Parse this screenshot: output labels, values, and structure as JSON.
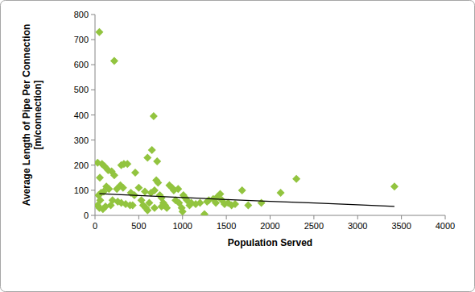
{
  "chart_data": {
    "type": "scatter",
    "x_label": "Population Served",
    "y_label": "Average Length of Pipe Per Connection [m/connection]",
    "xlim": [
      0,
      4000
    ],
    "xticks": [
      0,
      500,
      1000,
      1500,
      2000,
      2500,
      3000,
      3500,
      4000
    ],
    "ylim": [
      0,
      800
    ],
    "yticks": [
      0,
      100,
      200,
      300,
      400,
      500,
      600,
      700,
      800
    ],
    "grid": false,
    "series": [
      {
        "type": "scatter",
        "marker": "diamond",
        "color": "#92c43f",
        "x": [
          50,
          220,
          670,
          650,
          600,
          710,
          30,
          80,
          110,
          330,
          370,
          300,
          150,
          190,
          220,
          460,
          55,
          290,
          320,
          250,
          130,
          160,
          100,
          70,
          40,
          60,
          30,
          50,
          90,
          120,
          200,
          260,
          300,
          350,
          400,
          410,
          450,
          500,
          530,
          550,
          580,
          600,
          620,
          640,
          680,
          700,
          720,
          740,
          760,
          780,
          800,
          820,
          850,
          880,
          900,
          920,
          950,
          960,
          990,
          1000,
          1010,
          1030,
          1050,
          1080,
          1100,
          1150,
          1200,
          1250,
          1280,
          1300,
          1350,
          1380,
          1400,
          1430,
          1450,
          1480,
          1520,
          1560,
          1600,
          1680,
          1750,
          1900,
          2120,
          2300,
          3420,
          570,
          680,
          430,
          180,
          760
        ],
        "values": [
          730,
          615,
          395,
          260,
          230,
          215,
          210,
          205,
          195,
          205,
          205,
          200,
          180,
          175,
          160,
          170,
          150,
          120,
          110,
          105,
          115,
          105,
          95,
          90,
          80,
          60,
          40,
          30,
          25,
          35,
          60,
          55,
          50,
          45,
          40,
          90,
          80,
          110,
          60,
          40,
          30,
          20,
          50,
          90,
          100,
          140,
          130,
          80,
          70,
          50,
          40,
          30,
          120,
          110,
          100,
          60,
          105,
          50,
          30,
          15,
          80,
          70,
          60,
          40,
          50,
          45,
          50,
          5,
          55,
          60,
          65,
          50,
          75,
          85,
          60,
          45,
          50,
          40,
          45,
          100,
          40,
          50,
          90,
          145,
          115,
          95,
          30,
          40,
          40,
          35
        ]
      },
      {
        "type": "line",
        "line_style": "solid",
        "color": "#000000",
        "x": [
          50,
          500,
          1000,
          1500,
          2000,
          2500,
          3000,
          3420
        ],
        "values": [
          86,
          79,
          71,
          63,
          56,
          49,
          42,
          36
        ]
      }
    ]
  }
}
